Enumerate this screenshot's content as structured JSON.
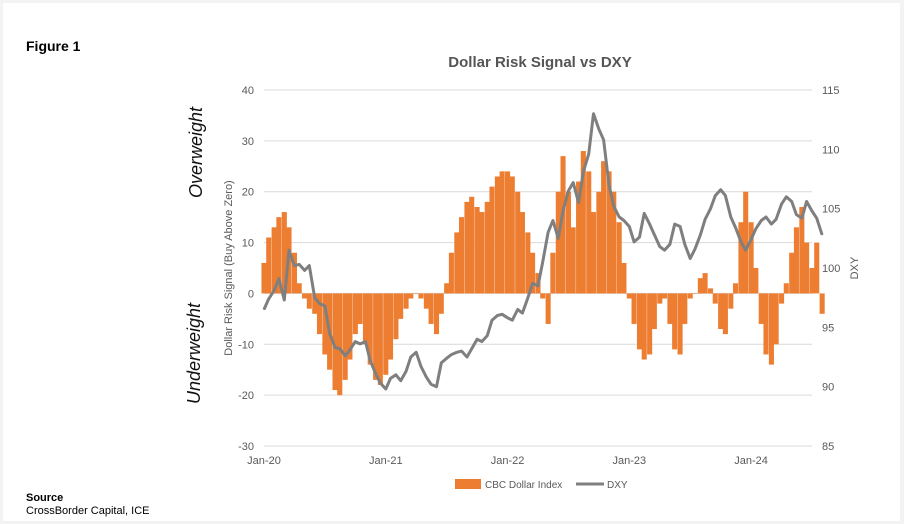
{
  "figure_label": "Figure 1",
  "side_labels": {
    "top": "Overweight",
    "bottom": "Underweight"
  },
  "source": {
    "title": "Source",
    "text": "CrossBorder Capital, ICE"
  },
  "colors": {
    "bars": "#ED7D31",
    "line": "#7F7F7F",
    "axis_text": "#595959",
    "grid": "#D9D9D9"
  },
  "chart_data": {
    "type": "bar+line",
    "title": "Dollar Risk Signal vs DXY",
    "ylabel_left": "Dollar Risk Signal (Buy Above Zero)",
    "ylabel_right": "DXY",
    "ylim_left": [
      -30,
      40
    ],
    "yticks_left": [
      -30,
      -20,
      -10,
      0,
      10,
      20,
      30,
      40
    ],
    "ylim_right": [
      85,
      115
    ],
    "yticks_right": [
      85,
      90,
      95,
      100,
      105,
      110,
      115
    ],
    "xlim": [
      "2020-01",
      "2024-07"
    ],
    "xticks": [
      {
        "date": "2020-01",
        "label": "Jan-20"
      },
      {
        "date": "2021-01",
        "label": "Jan-21"
      },
      {
        "date": "2022-01",
        "label": "Jan-22"
      },
      {
        "date": "2023-01",
        "label": "Jan-23"
      },
      {
        "date": "2024-01",
        "label": "Jan-24"
      }
    ],
    "grid": "horizontal",
    "legend_position": "bottom",
    "series": [
      {
        "name": "CBC Dollar Index",
        "type": "bar",
        "axis": "left",
        "points": [
          [
            "2020-01-01",
            6
          ],
          [
            "2020-01-15",
            11
          ],
          [
            "2020-02-01",
            13
          ],
          [
            "2020-02-15",
            15
          ],
          [
            "2020-03-01",
            16
          ],
          [
            "2020-03-15",
            13
          ],
          [
            "2020-04-01",
            8
          ],
          [
            "2020-04-15",
            2
          ],
          [
            "2020-05-01",
            -1
          ],
          [
            "2020-05-15",
            -3
          ],
          [
            "2020-06-01",
            -4
          ],
          [
            "2020-06-15",
            -8
          ],
          [
            "2020-07-01",
            -12
          ],
          [
            "2020-07-15",
            -15
          ],
          [
            "2020-08-01",
            -19
          ],
          [
            "2020-08-15",
            -20
          ],
          [
            "2020-09-01",
            -17
          ],
          [
            "2020-09-15",
            -13
          ],
          [
            "2020-10-01",
            -8
          ],
          [
            "2020-10-15",
            -6
          ],
          [
            "2020-11-01",
            -10
          ],
          [
            "2020-11-15",
            -14
          ],
          [
            "2020-12-01",
            -17
          ],
          [
            "2020-12-15",
            -18
          ],
          [
            "2021-01-01",
            -16
          ],
          [
            "2021-01-15",
            -13
          ],
          [
            "2021-02-01",
            -9
          ],
          [
            "2021-02-15",
            -5
          ],
          [
            "2021-03-01",
            -3
          ],
          [
            "2021-03-15",
            -1
          ],
          [
            "2021-04-01",
            0
          ],
          [
            "2021-04-15",
            -1
          ],
          [
            "2021-05-01",
            -3
          ],
          [
            "2021-05-15",
            -6
          ],
          [
            "2021-06-01",
            -8
          ],
          [
            "2021-06-15",
            -4
          ],
          [
            "2021-07-01",
            2
          ],
          [
            "2021-07-15",
            8
          ],
          [
            "2021-08-01",
            12
          ],
          [
            "2021-08-15",
            15
          ],
          [
            "2021-09-01",
            18
          ],
          [
            "2021-09-15",
            19
          ],
          [
            "2021-10-01",
            17
          ],
          [
            "2021-10-15",
            16
          ],
          [
            "2021-11-01",
            18
          ],
          [
            "2021-11-15",
            21
          ],
          [
            "2021-12-01",
            23
          ],
          [
            "2021-12-15",
            24
          ],
          [
            "2022-01-01",
            24
          ],
          [
            "2022-01-15",
            23
          ],
          [
            "2022-02-01",
            20
          ],
          [
            "2022-02-15",
            16
          ],
          [
            "2022-03-01",
            12
          ],
          [
            "2022-03-15",
            8
          ],
          [
            "2022-04-01",
            4
          ],
          [
            "2022-04-15",
            -1
          ],
          [
            "2022-05-01",
            -6
          ],
          [
            "2022-05-15",
            8
          ],
          [
            "2022-06-01",
            20
          ],
          [
            "2022-06-15",
            27
          ],
          [
            "2022-07-01",
            20
          ],
          [
            "2022-07-15",
            13
          ],
          [
            "2022-08-01",
            22
          ],
          [
            "2022-08-15",
            28
          ],
          [
            "2022-09-01",
            24
          ],
          [
            "2022-09-15",
            16
          ],
          [
            "2022-10-01",
            20
          ],
          [
            "2022-10-15",
            26
          ],
          [
            "2022-11-01",
            24
          ],
          [
            "2022-11-15",
            20
          ],
          [
            "2022-12-01",
            14
          ],
          [
            "2022-12-15",
            6
          ],
          [
            "2023-01-01",
            -1
          ],
          [
            "2023-01-15",
            -6
          ],
          [
            "2023-02-01",
            -11
          ],
          [
            "2023-02-15",
            -13
          ],
          [
            "2023-03-01",
            -12
          ],
          [
            "2023-03-15",
            -7
          ],
          [
            "2023-04-01",
            -2
          ],
          [
            "2023-04-15",
            -1
          ],
          [
            "2023-05-01",
            -6
          ],
          [
            "2023-05-15",
            -11
          ],
          [
            "2023-06-01",
            -12
          ],
          [
            "2023-06-15",
            -6
          ],
          [
            "2023-07-01",
            -1
          ],
          [
            "2023-07-15",
            0
          ],
          [
            "2023-08-01",
            3
          ],
          [
            "2023-08-15",
            4
          ],
          [
            "2023-09-01",
            1
          ],
          [
            "2023-09-15",
            -2
          ],
          [
            "2023-10-01",
            -7
          ],
          [
            "2023-10-15",
            -8
          ],
          [
            "2023-11-01",
            -3
          ],
          [
            "2023-11-15",
            2
          ],
          [
            "2023-12-01",
            14
          ],
          [
            "2023-12-15",
            20
          ],
          [
            "2024-01-01",
            14
          ],
          [
            "2024-01-15",
            5
          ],
          [
            "2024-02-01",
            -6
          ],
          [
            "2024-02-15",
            -12
          ],
          [
            "2024-03-01",
            -14
          ],
          [
            "2024-03-15",
            -10
          ],
          [
            "2024-04-01",
            -2
          ],
          [
            "2024-04-15",
            2
          ],
          [
            "2024-05-01",
            8
          ],
          [
            "2024-05-15",
            13
          ],
          [
            "2024-06-01",
            17
          ],
          [
            "2024-06-15",
            10
          ],
          [
            "2024-07-01",
            5
          ],
          [
            "2024-07-15",
            10
          ],
          [
            "2024-08-01",
            -4
          ]
        ]
      },
      {
        "name": "DXY",
        "type": "line",
        "axis": "right",
        "points": [
          [
            "2020-01-01",
            96.5
          ],
          [
            "2020-01-15",
            97.4
          ],
          [
            "2020-02-01",
            98.1
          ],
          [
            "2020-02-15",
            99.1
          ],
          [
            "2020-03-01",
            97.3
          ],
          [
            "2020-03-15",
            101.5
          ],
          [
            "2020-04-01",
            100.2
          ],
          [
            "2020-04-15",
            100.3
          ],
          [
            "2020-05-01",
            99.8
          ],
          [
            "2020-05-15",
            100.2
          ],
          [
            "2020-06-01",
            97.5
          ],
          [
            "2020-06-15",
            97.0
          ],
          [
            "2020-07-01",
            96.8
          ],
          [
            "2020-07-15",
            94.5
          ],
          [
            "2020-08-01",
            93.3
          ],
          [
            "2020-08-15",
            93.2
          ],
          [
            "2020-09-01",
            92.6
          ],
          [
            "2020-09-15",
            93.1
          ],
          [
            "2020-10-01",
            93.8
          ],
          [
            "2020-10-15",
            93.6
          ],
          [
            "2020-11-01",
            93.8
          ],
          [
            "2020-11-15",
            92.2
          ],
          [
            "2020-12-01",
            91.1
          ],
          [
            "2020-12-15",
            90.3
          ],
          [
            "2021-01-01",
            89.8
          ],
          [
            "2021-01-15",
            90.7
          ],
          [
            "2021-02-01",
            91.0
          ],
          [
            "2021-02-15",
            90.5
          ],
          [
            "2021-03-01",
            91.3
          ],
          [
            "2021-03-15",
            92.5
          ],
          [
            "2021-04-01",
            92.9
          ],
          [
            "2021-04-15",
            91.7
          ],
          [
            "2021-05-01",
            90.8
          ],
          [
            "2021-05-15",
            90.2
          ],
          [
            "2021-06-01",
            90.0
          ],
          [
            "2021-06-15",
            92.0
          ],
          [
            "2021-07-01",
            92.4
          ],
          [
            "2021-07-15",
            92.7
          ],
          [
            "2021-08-01",
            92.9
          ],
          [
            "2021-08-15",
            93.0
          ],
          [
            "2021-09-01",
            92.5
          ],
          [
            "2021-09-15",
            93.2
          ],
          [
            "2021-10-01",
            94.0
          ],
          [
            "2021-10-15",
            93.8
          ],
          [
            "2021-11-01",
            94.3
          ],
          [
            "2021-11-15",
            95.6
          ],
          [
            "2021-12-01",
            96.0
          ],
          [
            "2021-12-15",
            96.1
          ],
          [
            "2022-01-01",
            95.8
          ],
          [
            "2022-01-15",
            95.6
          ],
          [
            "2022-02-01",
            96.5
          ],
          [
            "2022-02-15",
            96.2
          ],
          [
            "2022-03-01",
            97.5
          ],
          [
            "2022-03-15",
            98.7
          ],
          [
            "2022-04-01",
            98.5
          ],
          [
            "2022-04-15",
            100.5
          ],
          [
            "2022-05-01",
            103.0
          ],
          [
            "2022-05-15",
            104.0
          ],
          [
            "2022-06-01",
            102.5
          ],
          [
            "2022-06-15",
            104.8
          ],
          [
            "2022-07-01",
            106.5
          ],
          [
            "2022-07-15",
            107.2
          ],
          [
            "2022-08-01",
            105.5
          ],
          [
            "2022-08-15",
            108.1
          ],
          [
            "2022-09-01",
            109.6
          ],
          [
            "2022-09-15",
            113.0
          ],
          [
            "2022-10-01",
            111.7
          ],
          [
            "2022-10-15",
            110.8
          ],
          [
            "2022-11-01",
            107.0
          ],
          [
            "2022-11-15",
            105.2
          ],
          [
            "2022-12-01",
            104.3
          ],
          [
            "2022-12-15",
            104.0
          ],
          [
            "2023-01-01",
            103.5
          ],
          [
            "2023-01-15",
            102.2
          ],
          [
            "2023-02-01",
            102.6
          ],
          [
            "2023-02-15",
            104.6
          ],
          [
            "2023-03-01",
            103.7
          ],
          [
            "2023-03-15",
            102.8
          ],
          [
            "2023-04-01",
            101.8
          ],
          [
            "2023-04-15",
            101.5
          ],
          [
            "2023-05-01",
            102.0
          ],
          [
            "2023-05-15",
            103.7
          ],
          [
            "2023-06-01",
            103.5
          ],
          [
            "2023-06-15",
            102.0
          ],
          [
            "2023-07-01",
            100.8
          ],
          [
            "2023-07-15",
            101.6
          ],
          [
            "2023-08-01",
            102.8
          ],
          [
            "2023-08-15",
            104.1
          ],
          [
            "2023-09-01",
            105.0
          ],
          [
            "2023-09-15",
            106.1
          ],
          [
            "2023-10-01",
            106.6
          ],
          [
            "2023-10-15",
            106.1
          ],
          [
            "2023-11-01",
            104.3
          ],
          [
            "2023-11-15",
            103.4
          ],
          [
            "2023-12-01",
            102.2
          ],
          [
            "2023-12-15",
            101.5
          ],
          [
            "2024-01-01",
            102.4
          ],
          [
            "2024-01-15",
            103.3
          ],
          [
            "2024-02-01",
            104.0
          ],
          [
            "2024-02-15",
            104.3
          ],
          [
            "2024-03-01",
            103.7
          ],
          [
            "2024-03-15",
            104.1
          ],
          [
            "2024-04-01",
            105.4
          ],
          [
            "2024-04-15",
            106.0
          ],
          [
            "2024-05-01",
            105.6
          ],
          [
            "2024-05-15",
            104.5
          ],
          [
            "2024-06-01",
            104.2
          ],
          [
            "2024-06-15",
            105.6
          ],
          [
            "2024-07-01",
            104.8
          ],
          [
            "2024-07-15",
            104.2
          ],
          [
            "2024-08-01",
            102.8
          ]
        ]
      }
    ]
  }
}
